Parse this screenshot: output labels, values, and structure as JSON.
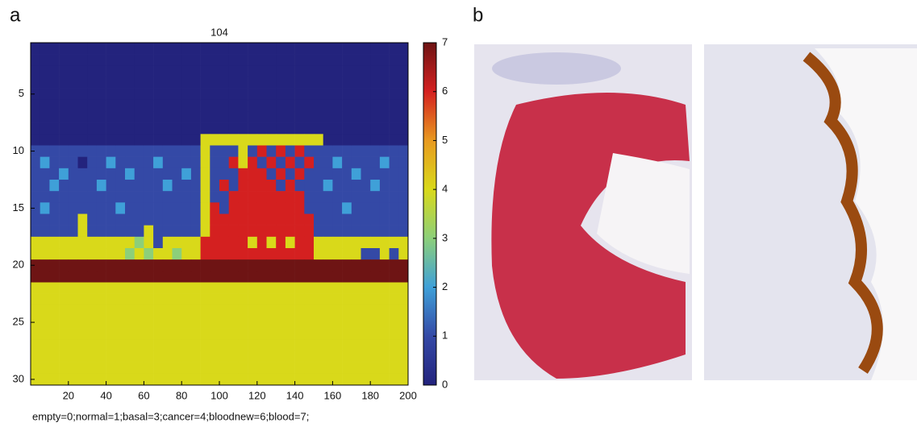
{
  "chart_data": {
    "type": "heatmap",
    "panel_a_label": "a",
    "panel_b_label": "b",
    "title": "104",
    "xlabel": "empty=0;normal=1;basal=3;cancer=4;bloodnew=6;blood=7;",
    "x": [
      0,
      5,
      10,
      15,
      20,
      25,
      30,
      35,
      40,
      45,
      50,
      55,
      60,
      65,
      70,
      75,
      80,
      85,
      90,
      95,
      100,
      105,
      110,
      115,
      120,
      125,
      130,
      135,
      140,
      145,
      150,
      155,
      160,
      165,
      170,
      175,
      180,
      185,
      190,
      195,
      200
    ],
    "y": [
      1,
      2,
      3,
      4,
      5,
      6,
      7,
      8,
      9,
      10,
      11,
      12,
      13,
      14,
      15,
      16,
      17,
      18,
      19,
      20,
      21,
      22,
      23,
      24,
      25,
      26,
      27,
      28,
      29,
      30
    ],
    "xlim": [
      0,
      200
    ],
    "xticks": [
      20,
      40,
      60,
      80,
      100,
      120,
      140,
      160,
      180,
      200
    ],
    "ylim": [
      30.5,
      0.5
    ],
    "yticks": [
      5,
      10,
      15,
      20,
      25,
      30
    ],
    "zlim": [
      0,
      7
    ],
    "colorbar_ticks": [
      0,
      1,
      2,
      3,
      4,
      5,
      6,
      7
    ],
    "colorscale": [
      "#23237d",
      "#3449a6",
      "#3fa0d8",
      "#8ccf7a",
      "#d9d91a",
      "#e89a20",
      "#d42020",
      "#6e1414"
    ],
    "z": [
      [
        0,
        0,
        0,
        0,
        0,
        0,
        0,
        0,
        0,
        0,
        0,
        0,
        0,
        0,
        0,
        0,
        0,
        0,
        0,
        0,
        0,
        0,
        0,
        0,
        0,
        0,
        0,
        0,
        0,
        0,
        0,
        0,
        0,
        0,
        0,
        0,
        0,
        0,
        0,
        0
      ],
      [
        0,
        0,
        0,
        0,
        0,
        0,
        0,
        0,
        0,
        0,
        0,
        0,
        0,
        0,
        0,
        0,
        0,
        0,
        0,
        0,
        0,
        0,
        0,
        0,
        0,
        0,
        0,
        0,
        0,
        0,
        0,
        0,
        0,
        0,
        0,
        0,
        0,
        0,
        0,
        0
      ],
      [
        0,
        0,
        0,
        0,
        0,
        0,
        0,
        0,
        0,
        0,
        0,
        0,
        0,
        0,
        0,
        0,
        0,
        0,
        0,
        0,
        0,
        0,
        0,
        0,
        0,
        0,
        0,
        0,
        0,
        0,
        0,
        0,
        0,
        0,
        0,
        0,
        0,
        0,
        0,
        0
      ],
      [
        0,
        0,
        0,
        0,
        0,
        0,
        0,
        0,
        0,
        0,
        0,
        0,
        0,
        0,
        0,
        0,
        0,
        0,
        0,
        0,
        0,
        0,
        0,
        0,
        0,
        0,
        0,
        0,
        0,
        0,
        0,
        0,
        0,
        0,
        0,
        0,
        0,
        0,
        0,
        0
      ],
      [
        0,
        0,
        0,
        0,
        0,
        0,
        0,
        0,
        0,
        0,
        0,
        0,
        0,
        0,
        0,
        0,
        0,
        0,
        0,
        0,
        0,
        0,
        0,
        0,
        0,
        0,
        0,
        0,
        0,
        0,
        0,
        0,
        0,
        0,
        0,
        0,
        0,
        0,
        0,
        0
      ],
      [
        0,
        0,
        0,
        0,
        0,
        0,
        0,
        0,
        0,
        0,
        0,
        0,
        0,
        0,
        0,
        0,
        0,
        0,
        0,
        0,
        0,
        0,
        0,
        0,
        0,
        0,
        0,
        0,
        0,
        0,
        0,
        0,
        0,
        0,
        0,
        0,
        0,
        0,
        0,
        0
      ],
      [
        0,
        0,
        0,
        0,
        0,
        0,
        0,
        0,
        0,
        0,
        0,
        0,
        0,
        0,
        0,
        0,
        0,
        0,
        0,
        0,
        0,
        0,
        0,
        0,
        0,
        0,
        0,
        0,
        0,
        0,
        0,
        0,
        0,
        0,
        0,
        0,
        0,
        0,
        0,
        0
      ],
      [
        0,
        0,
        0,
        0,
        0,
        0,
        0,
        0,
        0,
        0,
        0,
        0,
        0,
        0,
        0,
        0,
        0,
        0,
        0,
        0,
        0,
        0,
        0,
        0,
        0,
        0,
        0,
        0,
        0,
        0,
        0,
        0,
        0,
        0,
        0,
        0,
        0,
        0,
        0,
        0
      ],
      [
        0,
        0,
        0,
        0,
        0,
        0,
        0,
        0,
        0,
        0,
        0,
        0,
        0,
        0,
        0,
        0,
        0,
        0,
        4,
        4,
        4,
        4,
        4,
        4,
        4,
        4,
        4,
        4,
        4,
        4,
        4,
        0,
        0,
        0,
        0,
        0,
        0,
        0,
        0,
        0
      ],
      [
        1,
        1,
        1,
        1,
        1,
        1,
        1,
        1,
        1,
        1,
        1,
        1,
        1,
        1,
        1,
        1,
        1,
        1,
        4,
        1,
        1,
        1,
        4,
        1,
        6,
        1,
        6,
        1,
        6,
        1,
        1,
        1,
        1,
        1,
        1,
        1,
        1,
        1,
        1,
        1
      ],
      [
        1,
        2,
        1,
        1,
        1,
        0,
        1,
        1,
        2,
        1,
        1,
        1,
        1,
        2,
        1,
        1,
        1,
        1,
        4,
        1,
        1,
        6,
        4,
        6,
        1,
        6,
        1,
        6,
        1,
        6,
        1,
        1,
        2,
        1,
        1,
        1,
        1,
        2,
        1,
        1
      ],
      [
        1,
        1,
        1,
        2,
        1,
        1,
        1,
        1,
        1,
        1,
        2,
        1,
        1,
        1,
        1,
        1,
        2,
        1,
        4,
        1,
        1,
        1,
        6,
        6,
        6,
        1,
        6,
        1,
        6,
        1,
        1,
        1,
        1,
        1,
        2,
        1,
        1,
        1,
        1,
        1
      ],
      [
        1,
        1,
        2,
        1,
        1,
        1,
        1,
        2,
        1,
        1,
        1,
        1,
        1,
        1,
        2,
        1,
        1,
        1,
        4,
        1,
        6,
        1,
        6,
        6,
        6,
        6,
        1,
        6,
        1,
        1,
        1,
        2,
        1,
        1,
        1,
        1,
        2,
        1,
        1,
        1
      ],
      [
        1,
        1,
        1,
        1,
        1,
        1,
        1,
        1,
        1,
        1,
        1,
        1,
        1,
        1,
        1,
        1,
        1,
        1,
        4,
        1,
        1,
        6,
        6,
        6,
        6,
        6,
        6,
        6,
        6,
        1,
        1,
        1,
        1,
        1,
        1,
        1,
        1,
        1,
        1,
        1
      ],
      [
        1,
        2,
        1,
        1,
        1,
        1,
        1,
        1,
        1,
        2,
        1,
        1,
        1,
        1,
        1,
        1,
        1,
        1,
        4,
        6,
        1,
        6,
        6,
        6,
        6,
        6,
        6,
        6,
        6,
        1,
        1,
        1,
        1,
        2,
        1,
        1,
        1,
        1,
        1,
        1
      ],
      [
        1,
        1,
        1,
        1,
        1,
        4,
        1,
        1,
        1,
        1,
        1,
        1,
        1,
        1,
        1,
        1,
        1,
        1,
        4,
        6,
        6,
        6,
        6,
        6,
        6,
        6,
        6,
        6,
        6,
        6,
        1,
        1,
        1,
        1,
        1,
        1,
        1,
        1,
        1,
        1
      ],
      [
        1,
        1,
        1,
        1,
        1,
        4,
        1,
        1,
        1,
        1,
        1,
        1,
        4,
        1,
        1,
        1,
        1,
        1,
        4,
        6,
        6,
        6,
        6,
        6,
        6,
        6,
        6,
        6,
        6,
        6,
        1,
        1,
        1,
        1,
        1,
        1,
        1,
        1,
        1,
        1
      ],
      [
        4,
        4,
        4,
        4,
        4,
        4,
        4,
        4,
        4,
        4,
        4,
        3,
        4,
        1,
        4,
        4,
        4,
        4,
        6,
        6,
        6,
        6,
        6,
        4,
        6,
        4,
        6,
        4,
        6,
        6,
        4,
        4,
        4,
        4,
        4,
        4,
        4,
        4,
        4,
        4
      ],
      [
        4,
        4,
        4,
        4,
        4,
        4,
        4,
        4,
        4,
        4,
        3,
        4,
        3,
        4,
        4,
        3,
        4,
        4,
        6,
        6,
        6,
        6,
        6,
        6,
        6,
        6,
        6,
        6,
        6,
        6,
        4,
        4,
        4,
        4,
        4,
        1,
        1,
        4,
        1,
        4
      ],
      [
        7,
        7,
        7,
        7,
        7,
        7,
        7,
        7,
        7,
        7,
        7,
        7,
        7,
        7,
        7,
        7,
        7,
        7,
        7,
        7,
        7,
        7,
        7,
        7,
        7,
        7,
        7,
        7,
        7,
        7,
        7,
        7,
        7,
        7,
        7,
        7,
        7,
        7,
        7,
        7
      ],
      [
        7,
        7,
        7,
        7,
        7,
        7,
        7,
        7,
        7,
        7,
        7,
        7,
        7,
        7,
        7,
        7,
        7,
        7,
        7,
        7,
        7,
        7,
        7,
        7,
        7,
        7,
        7,
        7,
        7,
        7,
        7,
        7,
        7,
        7,
        7,
        7,
        7,
        7,
        7,
        7
      ],
      [
        4,
        4,
        4,
        4,
        4,
        4,
        4,
        4,
        4,
        4,
        4,
        4,
        4,
        4,
        4,
        4,
        4,
        4,
        4,
        4,
        4,
        4,
        4,
        4,
        4,
        4,
        4,
        4,
        4,
        4,
        4,
        4,
        4,
        4,
        4,
        4,
        4,
        4,
        4,
        4
      ],
      [
        4,
        4,
        4,
        4,
        4,
        4,
        4,
        4,
        4,
        4,
        4,
        4,
        4,
        4,
        4,
        4,
        4,
        4,
        4,
        4,
        4,
        4,
        4,
        4,
        4,
        4,
        4,
        4,
        4,
        4,
        4,
        4,
        4,
        4,
        4,
        4,
        4,
        4,
        4,
        4
      ],
      [
        4,
        4,
        4,
        4,
        4,
        4,
        4,
        4,
        4,
        4,
        4,
        4,
        4,
        4,
        4,
        4,
        4,
        4,
        4,
        4,
        4,
        4,
        4,
        4,
        4,
        4,
        4,
        4,
        4,
        4,
        4,
        4,
        4,
        4,
        4,
        4,
        4,
        4,
        4,
        4
      ],
      [
        4,
        4,
        4,
        4,
        4,
        4,
        4,
        4,
        4,
        4,
        4,
        4,
        4,
        4,
        4,
        4,
        4,
        4,
        4,
        4,
        4,
        4,
        4,
        4,
        4,
        4,
        4,
        4,
        4,
        4,
        4,
        4,
        4,
        4,
        4,
        4,
        4,
        4,
        4,
        4
      ],
      [
        4,
        4,
        4,
        4,
        4,
        4,
        4,
        4,
        4,
        4,
        4,
        4,
        4,
        4,
        4,
        4,
        4,
        4,
        4,
        4,
        4,
        4,
        4,
        4,
        4,
        4,
        4,
        4,
        4,
        4,
        4,
        4,
        4,
        4,
        4,
        4,
        4,
        4,
        4,
        4
      ],
      [
        4,
        4,
        4,
        4,
        4,
        4,
        4,
        4,
        4,
        4,
        4,
        4,
        4,
        4,
        4,
        4,
        4,
        4,
        4,
        4,
        4,
        4,
        4,
        4,
        4,
        4,
        4,
        4,
        4,
        4,
        4,
        4,
        4,
        4,
        4,
        4,
        4,
        4,
        4,
        4
      ],
      [
        4,
        4,
        4,
        4,
        4,
        4,
        4,
        4,
        4,
        4,
        4,
        4,
        4,
        4,
        4,
        4,
        4,
        4,
        4,
        4,
        4,
        4,
        4,
        4,
        4,
        4,
        4,
        4,
        4,
        4,
        4,
        4,
        4,
        4,
        4,
        4,
        4,
        4,
        4,
        4
      ],
      [
        4,
        4,
        4,
        4,
        4,
        4,
        4,
        4,
        4,
        4,
        4,
        4,
        4,
        4,
        4,
        4,
        4,
        4,
        4,
        4,
        4,
        4,
        4,
        4,
        4,
        4,
        4,
        4,
        4,
        4,
        4,
        4,
        4,
        4,
        4,
        4,
        4,
        4,
        4,
        4
      ],
      [
        4,
        4,
        4,
        4,
        4,
        4,
        4,
        4,
        4,
        4,
        4,
        4,
        4,
        4,
        4,
        4,
        4,
        4,
        4,
        4,
        4,
        4,
        4,
        4,
        4,
        4,
        4,
        4,
        4,
        4,
        4,
        4,
        4,
        4,
        4,
        4,
        4,
        4,
        4,
        4
      ]
    ]
  }
}
